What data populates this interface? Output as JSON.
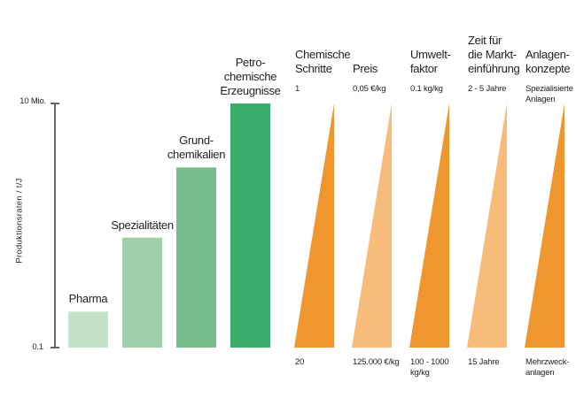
{
  "chart_data": {
    "type": "bar",
    "yaxis": {
      "label": "Produktionsraten / t/J",
      "scale": "log",
      "min_label": "0.1",
      "max_label": "10 Mio.",
      "min": 0.1,
      "max": 10000000
    },
    "bars": [
      {
        "label": "Pharma",
        "value": 1.5,
        "color": "#c3e3c9"
      },
      {
        "label": "Spezialitäten",
        "value": 400,
        "color": "#9ed0a9"
      },
      {
        "label": "Grund-\nchemikalien",
        "value": 80000,
        "color": "#76bf8c"
      },
      {
        "label": "Petro-\nchemische\nErzeugnisse",
        "value": 10000000,
        "color": "#3aad6c"
      }
    ],
    "wedges": [
      {
        "header": "Chemische\nSchritte",
        "top": "1",
        "bottom": "20",
        "color": "#f0962f"
      },
      {
        "header": "Preis",
        "top": "0,05 €/kg",
        "bottom": "125.000 €/kg",
        "color": "#f7bc7a"
      },
      {
        "header": "Umwelt-\nfaktor",
        "top": "0.1 kg/kg",
        "bottom": "100 - 1000\nkg/kg",
        "color": "#f0962f"
      },
      {
        "header": "Zeit für\ndie Markt-\neinführung",
        "top": "2 - 5 Jahre",
        "bottom": "15 Jahre",
        "color": "#f7bc7a"
      },
      {
        "header": "Anlagen-\nkonzepte",
        "top": "Spezialisierte\nAnlagen",
        "bottom": "Mehrzweck-\nanlagen",
        "color": "#f0962f"
      }
    ]
  }
}
